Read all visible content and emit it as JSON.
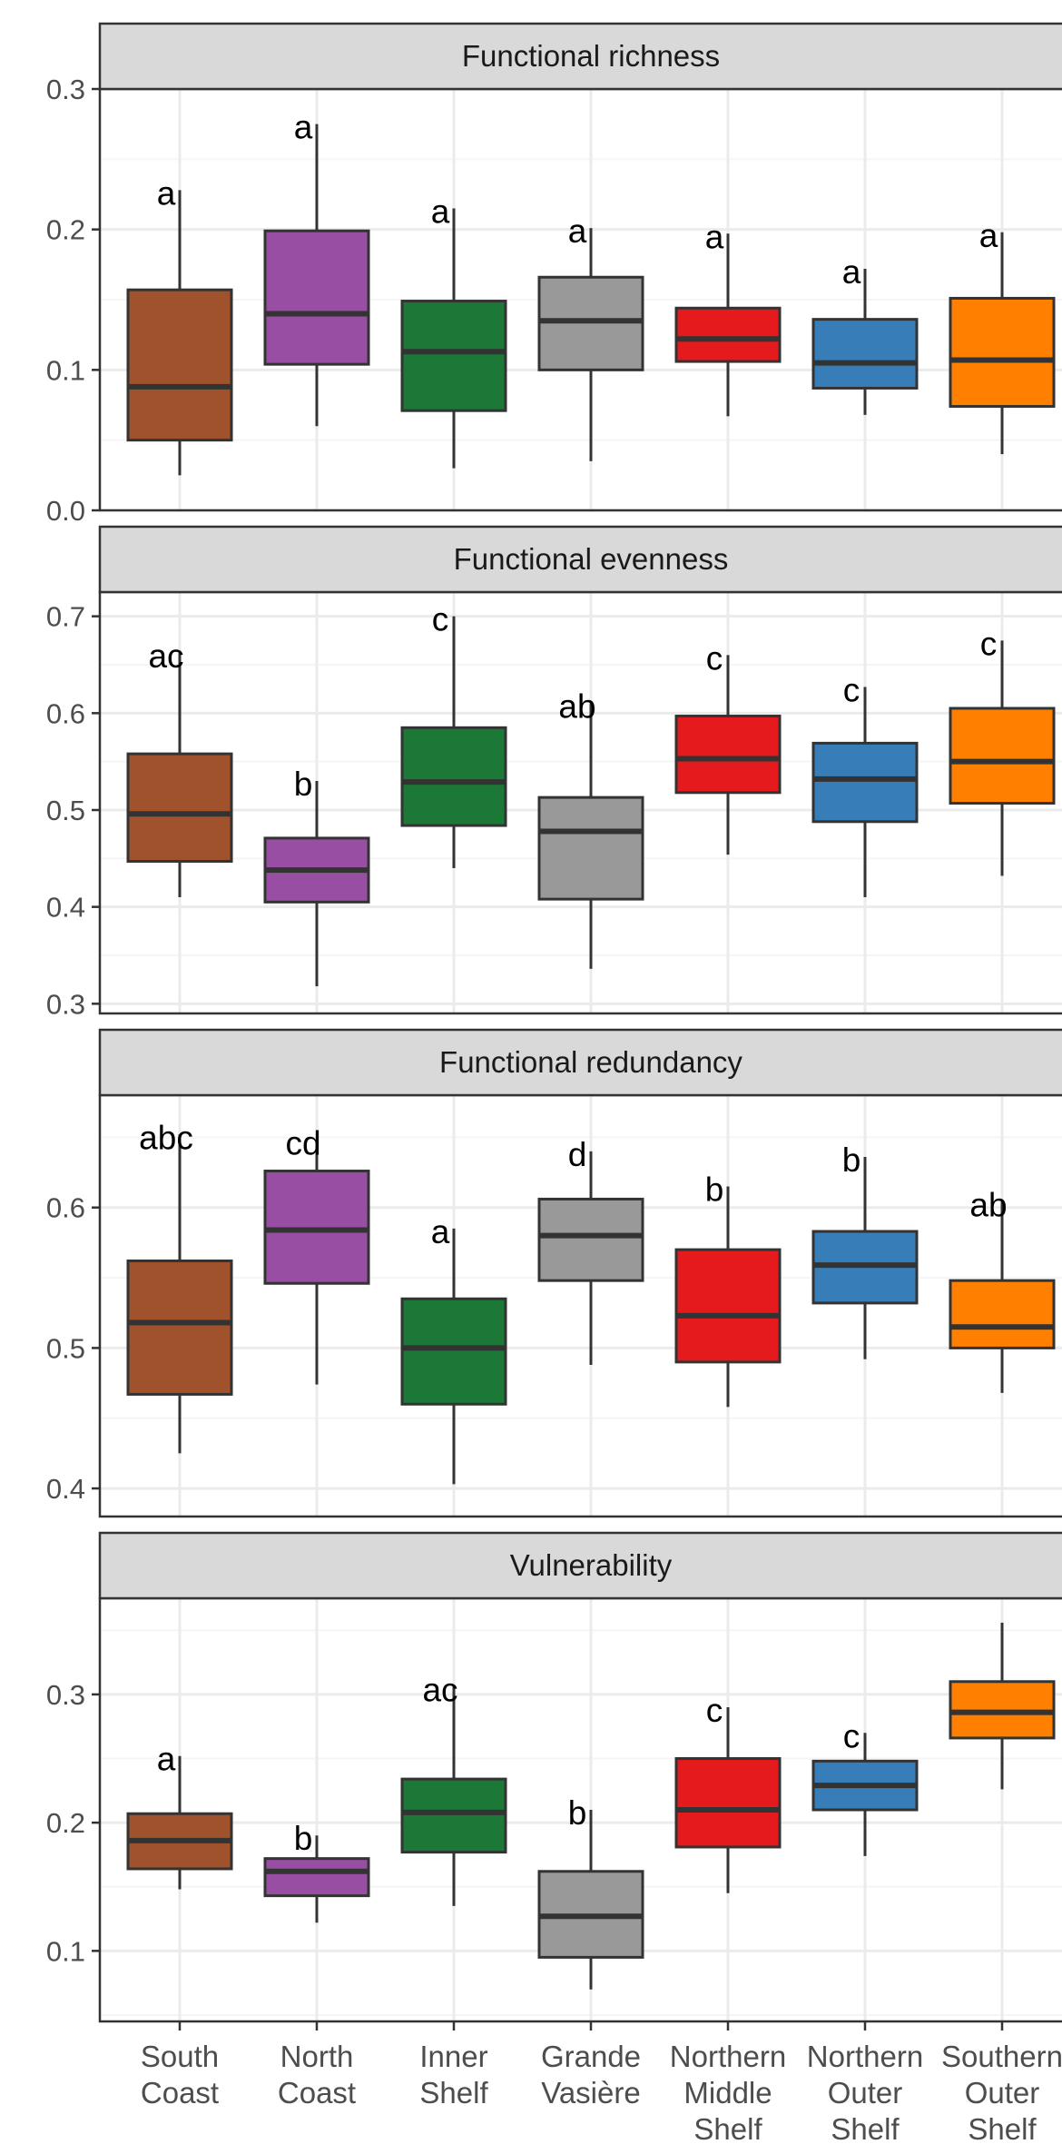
{
  "chart_data": {
    "type": "box",
    "categories": [
      [
        "South",
        "Coast"
      ],
      [
        "North",
        "Coast"
      ],
      [
        "Inner",
        "Shelf"
      ],
      [
        "Grande",
        "Vasière"
      ],
      [
        "Northern",
        "Middle",
        "Shelf"
      ],
      [
        "Northern",
        "Outer",
        "Shelf"
      ],
      [
        "Southern",
        "Outer",
        "Shelf"
      ]
    ],
    "colors": [
      "#A0522D",
      "#984EA3",
      "#1B7837",
      "#999999",
      "#E41A1C",
      "#377EB8",
      "#FF7F00"
    ],
    "panels": [
      {
        "title": "Functional richness",
        "ylim": [
          0,
          0.3
        ],
        "yticks": [
          0,
          0.1,
          0.2,
          0.3
        ],
        "ytick_labels": [
          "0.0",
          "0.1",
          "0.2",
          "0.3"
        ],
        "boxes": [
          {
            "low": 0.025,
            "q1": 0.05,
            "median": 0.088,
            "q3": 0.157,
            "high": 0.228,
            "label": "a"
          },
          {
            "low": 0.06,
            "q1": 0.104,
            "median": 0.14,
            "q3": 0.199,
            "high": 0.275,
            "label": "a"
          },
          {
            "low": 0.03,
            "q1": 0.071,
            "median": 0.113,
            "q3": 0.149,
            "high": 0.215,
            "label": "a"
          },
          {
            "low": 0.035,
            "q1": 0.1,
            "median": 0.135,
            "q3": 0.166,
            "high": 0.201,
            "label": "a"
          },
          {
            "low": 0.067,
            "q1": 0.106,
            "median": 0.122,
            "q3": 0.144,
            "high": 0.197,
            "label": "a"
          },
          {
            "low": 0.068,
            "q1": 0.087,
            "median": 0.105,
            "q3": 0.136,
            "high": 0.172,
            "label": "a"
          },
          {
            "low": 0.04,
            "q1": 0.074,
            "median": 0.107,
            "q3": 0.151,
            "high": 0.198,
            "label": "a"
          }
        ]
      },
      {
        "title": "Functional evenness",
        "ylim": [
          0.29,
          0.725
        ],
        "yticks": [
          0.3,
          0.4,
          0.5,
          0.6,
          0.7
        ],
        "ytick_labels": [
          "0.3",
          "0.4",
          "0.5",
          "0.6",
          "0.7"
        ],
        "boxes": [
          {
            "low": 0.41,
            "q1": 0.447,
            "median": 0.496,
            "q3": 0.558,
            "high": 0.662,
            "label": "ac"
          },
          {
            "low": 0.318,
            "q1": 0.405,
            "median": 0.438,
            "q3": 0.471,
            "high": 0.53,
            "label": "b"
          },
          {
            "low": 0.44,
            "q1": 0.484,
            "median": 0.529,
            "q3": 0.585,
            "high": 0.7,
            "label": "c"
          },
          {
            "low": 0.336,
            "q1": 0.408,
            "median": 0.478,
            "q3": 0.513,
            "high": 0.61,
            "label": "ab"
          },
          {
            "low": 0.454,
            "q1": 0.518,
            "median": 0.553,
            "q3": 0.597,
            "high": 0.66,
            "label": "c"
          },
          {
            "low": 0.41,
            "q1": 0.488,
            "median": 0.532,
            "q3": 0.569,
            "high": 0.627,
            "label": "c"
          },
          {
            "low": 0.432,
            "q1": 0.507,
            "median": 0.55,
            "q3": 0.605,
            "high": 0.675,
            "label": "c"
          }
        ]
      },
      {
        "title": "Functional redundancy",
        "ylim": [
          0.38,
          0.68
        ],
        "yticks": [
          0.4,
          0.5,
          0.6
        ],
        "ytick_labels": [
          "0.4",
          "0.5",
          "0.6"
        ],
        "boxes": [
          {
            "low": 0.425,
            "q1": 0.467,
            "median": 0.518,
            "q3": 0.562,
            "high": 0.652,
            "label": "abc"
          },
          {
            "low": 0.474,
            "q1": 0.546,
            "median": 0.584,
            "q3": 0.626,
            "high": 0.648,
            "label": "cd"
          },
          {
            "low": 0.403,
            "q1": 0.46,
            "median": 0.5,
            "q3": 0.535,
            "high": 0.585,
            "label": "a"
          },
          {
            "low": 0.488,
            "q1": 0.548,
            "median": 0.58,
            "q3": 0.606,
            "high": 0.64,
            "label": "d"
          },
          {
            "low": 0.458,
            "q1": 0.49,
            "median": 0.523,
            "q3": 0.57,
            "high": 0.615,
            "label": "b"
          },
          {
            "low": 0.492,
            "q1": 0.532,
            "median": 0.559,
            "q3": 0.583,
            "high": 0.636,
            "label": "b"
          },
          {
            "low": 0.468,
            "q1": 0.5,
            "median": 0.515,
            "q3": 0.548,
            "high": 0.604,
            "label": "ab"
          }
        ]
      },
      {
        "title": "Vulnerability",
        "ylim": [
          0.045,
          0.375
        ],
        "yticks": [
          0.1,
          0.2,
          0.3
        ],
        "ytick_labels": [
          "0.1",
          "0.2",
          "0.3"
        ],
        "boxes": [
          {
            "low": 0.148,
            "q1": 0.164,
            "median": 0.186,
            "q3": 0.207,
            "high": 0.252,
            "label": "a"
          },
          {
            "low": 0.122,
            "q1": 0.143,
            "median": 0.162,
            "q3": 0.172,
            "high": 0.19,
            "label": "b"
          },
          {
            "low": 0.135,
            "q1": 0.177,
            "median": 0.208,
            "q3": 0.234,
            "high": 0.306,
            "label": "ac"
          },
          {
            "low": 0.07,
            "q1": 0.095,
            "median": 0.127,
            "q3": 0.162,
            "high": 0.21,
            "label": "b"
          },
          {
            "low": 0.145,
            "q1": 0.181,
            "median": 0.21,
            "q3": 0.25,
            "high": 0.29,
            "label": "c"
          },
          {
            "low": 0.174,
            "q1": 0.21,
            "median": 0.229,
            "q3": 0.248,
            "high": 0.27,
            "label": "c"
          },
          {
            "low": 0.226,
            "q1": 0.266,
            "median": 0.286,
            "q3": 0.31,
            "high": 0.356,
            "label": ""
          }
        ]
      }
    ]
  }
}
